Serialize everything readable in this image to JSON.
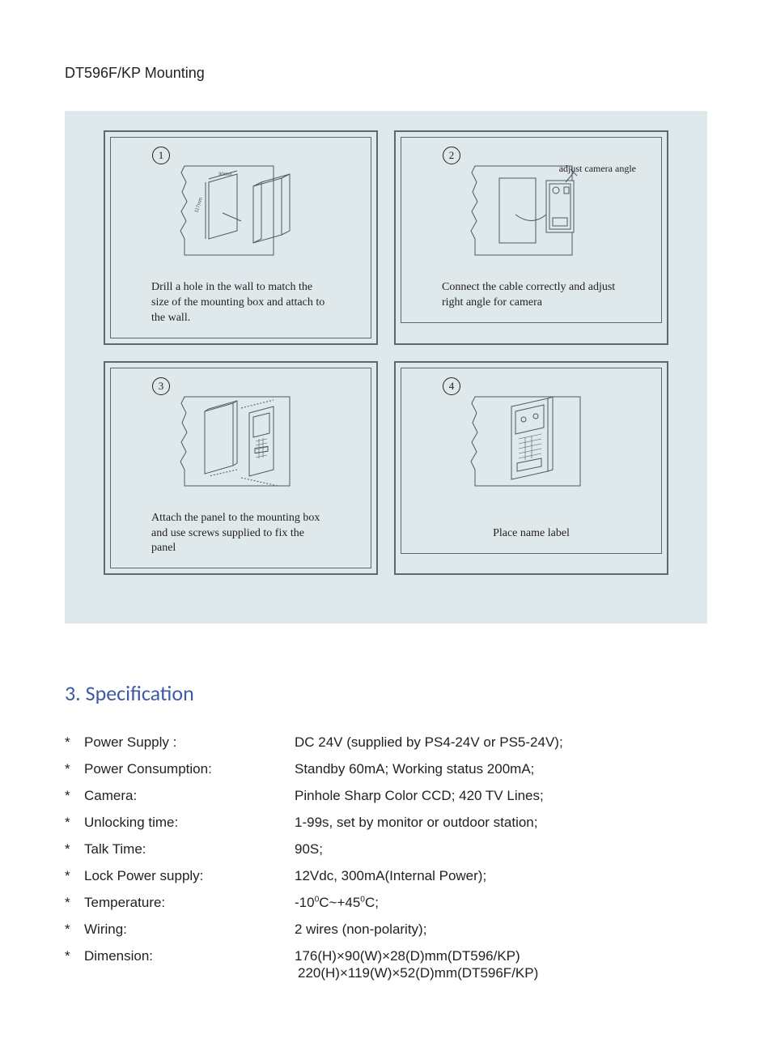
{
  "page_title": "DT596F/KP Mounting",
  "colors": {
    "diagram_bg": "#dfe8eb",
    "box_border": "#5a6a72",
    "text": "#231f20",
    "heading": "#3b5ba5",
    "line": "#4a5a62"
  },
  "steps": [
    {
      "num": "1",
      "caption": "Drill a hole in the wall to match the size of the mounting box and attach to the wall.",
      "annot": ""
    },
    {
      "num": "2",
      "caption": "Connect the cable correctly and adjust right angle for camera",
      "annot": "adjust camera angle"
    },
    {
      "num": "3",
      "caption": "Attach the panel to the mounting box and use screws supplied to fix the panel",
      "annot": ""
    },
    {
      "num": "4",
      "caption": "Place name label",
      "annot": ""
    }
  ],
  "spec_heading": "3. Specification",
  "specs": [
    {
      "label": "Power Supply :",
      "value": "DC 24V (supplied by PS4-24V or PS5-24V);"
    },
    {
      "label": "Power Consumption:",
      "value": "Standby 60mA; Working status 200mA;"
    },
    {
      "label": "Camera:",
      "value": "Pinhole Sharp Color CCD; 420 TV Lines;"
    },
    {
      "label": "Unlocking time:",
      "value": "1-99s, set by monitor or outdoor station;"
    },
    {
      "label": "Talk Time:",
      "value": "90S;"
    },
    {
      "label": "Lock Power supply:",
      "value": "12Vdc, 300mA(Internal Power);"
    },
    {
      "label": "Temperature:",
      "value_html": "-10<sup>0</sup>C~+45<sup>0</sup>C;"
    },
    {
      "label": "Wiring:",
      "value": "2 wires (non-polarity);"
    },
    {
      "label": "Dimension:",
      "value": "176(H)×90(W)×28(D)mm(DT596/KP)",
      "value2": "220(H)×119(W)×52(D)mm(DT596F/KP)"
    }
  ]
}
